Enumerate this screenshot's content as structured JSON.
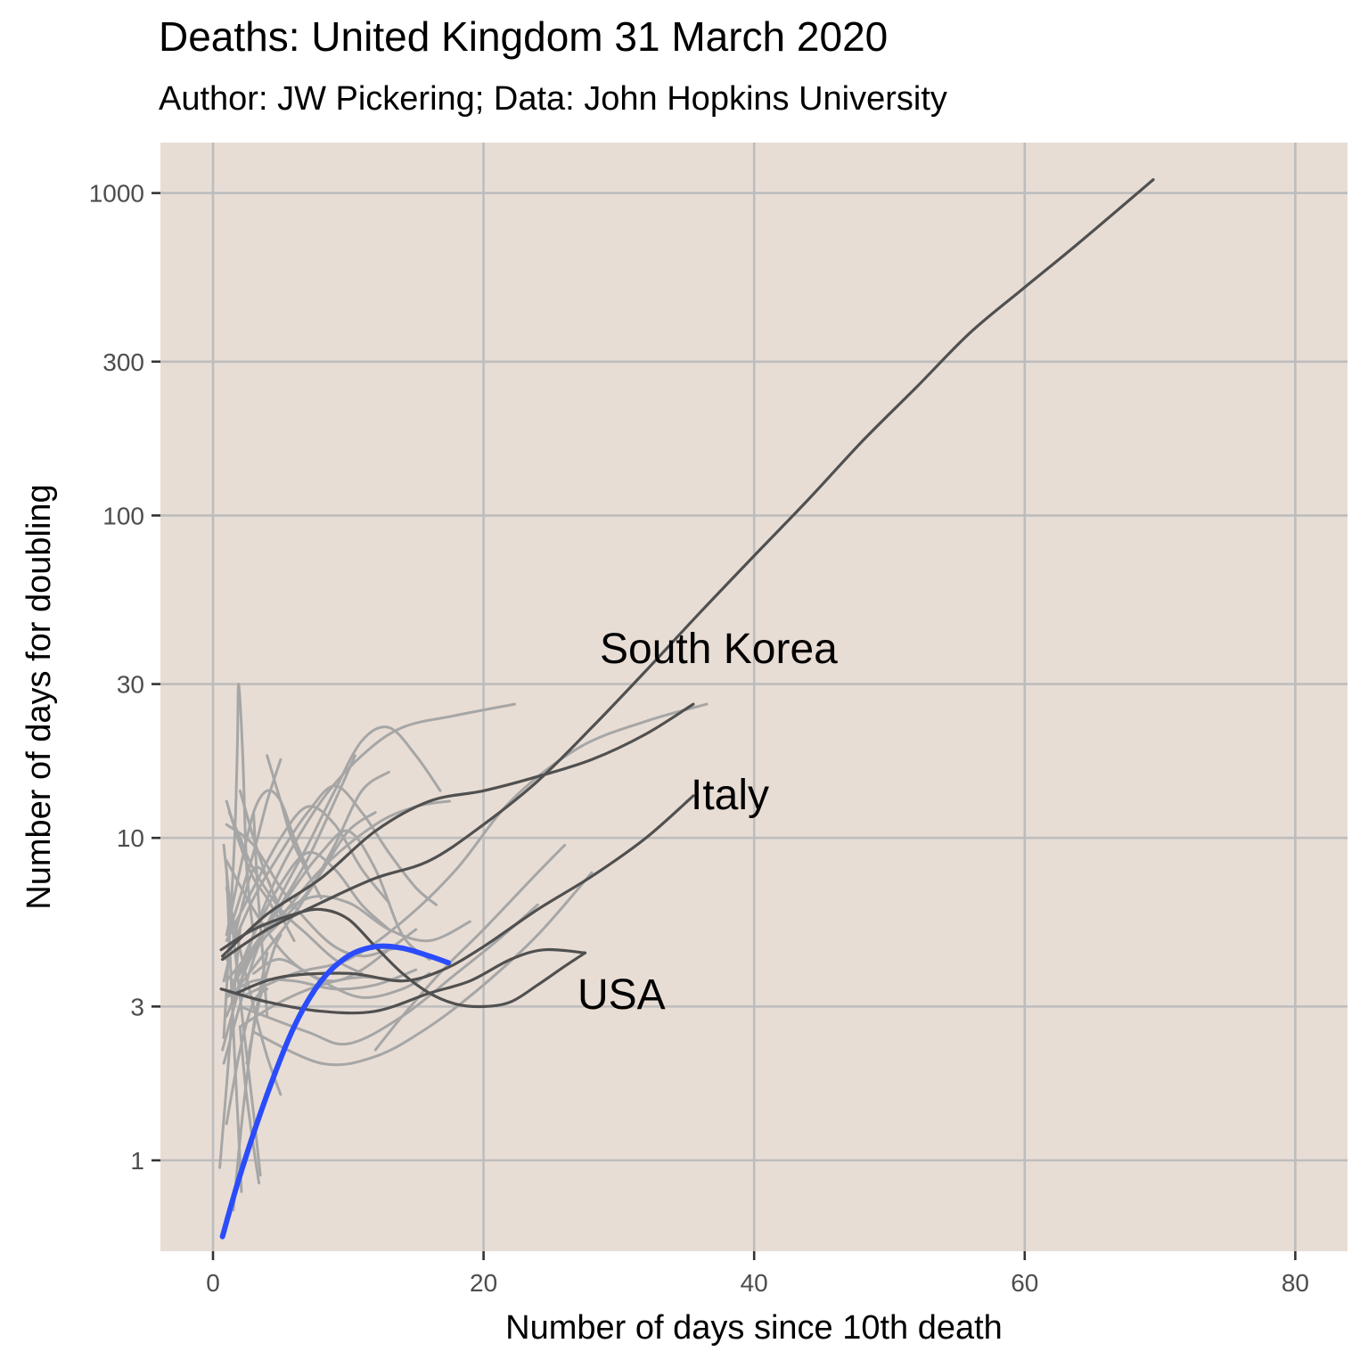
{
  "chart_data": {
    "type": "line",
    "title": "Deaths: United Kingdom 31 March 2020",
    "subtitle": "Author: JW Pickering; Data: John Hopkins University",
    "xlabel": "Number of days since 10th death",
    "ylabel": "Number of days for doubling",
    "x_scale": "linear",
    "y_scale": "log10",
    "xlim": [
      -4,
      84
    ],
    "ylim": [
      0.58,
      1250
    ],
    "x_ticks": [
      0,
      20,
      40,
      60,
      80
    ],
    "y_ticks": [
      1,
      3,
      10,
      30,
      100,
      300,
      1000
    ],
    "grid": true,
    "background": "#e8ddd5",
    "grid_color": "#bdbdbd",
    "colors": {
      "highlight": "#2a4cfa",
      "labeled": "#505050",
      "others": "#a6a6a6"
    },
    "highlight_series": {
      "country": "United Kingdom",
      "points": [
        [
          0.7,
          0.58
        ],
        [
          2,
          0.9
        ],
        [
          4,
          1.6
        ],
        [
          6,
          2.6
        ],
        [
          8,
          3.6
        ],
        [
          10,
          4.3
        ],
        [
          12,
          4.6
        ],
        [
          14,
          4.55
        ],
        [
          16,
          4.3
        ],
        [
          17.4,
          4.1
        ]
      ]
    },
    "labeled_series": [
      {
        "name": "South Korea",
        "points": [
          [
            0.7,
            4.2
          ],
          [
            4,
            5.2
          ],
          [
            8,
            6.3
          ],
          [
            12,
            7.5
          ],
          [
            16,
            8.5
          ],
          [
            20,
            11
          ],
          [
            24,
            15
          ],
          [
            28,
            22
          ],
          [
            32,
            33
          ],
          [
            36,
            50
          ],
          [
            40,
            75
          ],
          [
            44,
            112
          ],
          [
            48,
            170
          ],
          [
            52,
            250
          ],
          [
            56,
            370
          ],
          [
            60,
            510
          ],
          [
            64,
            700
          ],
          [
            69.5,
            1100
          ]
        ]
      },
      {
        "name": "Italy",
        "points": [
          [
            1.7,
            3.3
          ],
          [
            5,
            3.7
          ],
          [
            10,
            3.8
          ],
          [
            14,
            3.6
          ],
          [
            17,
            3.9
          ],
          [
            20,
            4.6
          ],
          [
            24,
            6
          ],
          [
            28,
            7.6
          ],
          [
            32,
            10
          ],
          [
            35.5,
            13.5
          ]
        ]
      },
      {
        "name": "USA",
        "points": [
          [
            0.6,
            3.4
          ],
          [
            4,
            3.1
          ],
          [
            8,
            2.9
          ],
          [
            12,
            2.9
          ],
          [
            16,
            3.3
          ],
          [
            19,
            3.6
          ],
          [
            22,
            4.2
          ],
          [
            24.5,
            4.5
          ],
          [
            27.5,
            4.4
          ]
        ]
      },
      {
        "name": "",
        "points": [
          [
            0.7,
            4.3
          ],
          [
            4,
            5.8
          ],
          [
            8,
            7.5
          ],
          [
            12,
            10.5
          ],
          [
            16,
            13
          ],
          [
            20,
            14
          ],
          [
            24,
            15.5
          ],
          [
            28,
            17.5
          ],
          [
            32,
            21
          ],
          [
            35.5,
            26
          ]
        ]
      },
      {
        "name": "",
        "points": [
          [
            0.6,
            4.5
          ],
          [
            3,
            5.2
          ],
          [
            6,
            5.8
          ],
          [
            8,
            6
          ],
          [
            10,
            5.6
          ],
          [
            12,
            4.6
          ],
          [
            14,
            3.8
          ],
          [
            16,
            3.3
          ],
          [
            18,
            3.05
          ],
          [
            20,
            3.0
          ],
          [
            22,
            3.1
          ],
          [
            24,
            3.5
          ],
          [
            26,
            4.0
          ],
          [
            27.5,
            4.4
          ]
        ]
      }
    ],
    "other_series": [
      [
        [
          0.7,
          2.2
        ],
        [
          2,
          3.5
        ],
        [
          3,
          5
        ],
        [
          5,
          8
        ],
        [
          8,
          13
        ],
        [
          11,
          18
        ],
        [
          14,
          22
        ],
        [
          18,
          24
        ],
        [
          22.3,
          26
        ]
      ],
      [
        [
          1.5,
          3.6
        ],
        [
          4,
          5
        ],
        [
          8,
          8
        ],
        [
          12,
          11
        ],
        [
          15,
          12.5
        ],
        [
          17.5,
          13
        ]
      ],
      [
        [
          2,
          3.2
        ],
        [
          6,
          3.8
        ],
        [
          10,
          4.2
        ],
        [
          14,
          5.5
        ],
        [
          18,
          8
        ],
        [
          22,
          13
        ],
        [
          27,
          19
        ],
        [
          32,
          23
        ],
        [
          36.5,
          26
        ]
      ],
      [
        [
          3,
          2.5
        ],
        [
          8,
          2.0
        ],
        [
          12,
          2.1
        ],
        [
          16,
          2.6
        ],
        [
          20,
          3.5
        ],
        [
          24,
          5
        ],
        [
          28,
          7.8
        ]
      ],
      [
        [
          2,
          3
        ],
        [
          7,
          2.5
        ],
        [
          10,
          2.3
        ],
        [
          14,
          2.8
        ],
        [
          18,
          3.8
        ],
        [
          21,
          4.8
        ],
        [
          24,
          6.2
        ]
      ],
      [
        [
          2,
          4
        ],
        [
          6,
          7
        ],
        [
          8,
          9
        ],
        [
          10,
          10.5
        ],
        [
          12,
          8
        ],
        [
          14,
          5
        ],
        [
          16,
          4.2
        ]
      ],
      [
        [
          1,
          2.8
        ],
        [
          3,
          4.4
        ],
        [
          5,
          5.5
        ],
        [
          7,
          6.8
        ],
        [
          9,
          9.5
        ],
        [
          11,
          14
        ],
        [
          13,
          16
        ]
      ],
      [
        [
          1,
          3.2
        ],
        [
          4,
          5.2
        ],
        [
          7,
          6.5
        ],
        [
          10,
          6.3
        ],
        [
          13,
          5.2
        ],
        [
          16,
          4.8
        ],
        [
          19,
          5.5
        ]
      ],
      [
        [
          0.8,
          2.0
        ],
        [
          3,
          4.2
        ],
        [
          5,
          6.6
        ],
        [
          7,
          9.5
        ],
        [
          9,
          14
        ],
        [
          11,
          20
        ],
        [
          13,
          22
        ],
        [
          15,
          18
        ],
        [
          16.8,
          14
        ]
      ],
      [
        [
          1,
          4.2
        ],
        [
          3,
          6.5
        ],
        [
          5,
          9
        ],
        [
          7,
          12
        ],
        [
          9,
          14.5
        ],
        [
          11,
          12
        ],
        [
          13,
          9
        ],
        [
          15,
          7
        ],
        [
          16.5,
          6.2
        ]
      ],
      [
        [
          1,
          8.5
        ],
        [
          3,
          6
        ],
        [
          5,
          4.5
        ],
        [
          7,
          3.8
        ],
        [
          9,
          3.6
        ],
        [
          11,
          3.9
        ],
        [
          13,
          4.5
        ],
        [
          15,
          5.2
        ]
      ],
      [
        [
          1,
          11
        ],
        [
          3,
          9.5
        ],
        [
          5,
          7
        ],
        [
          7,
          5.5
        ],
        [
          9,
          4.6
        ],
        [
          11,
          4.3
        ],
        [
          13,
          4.5
        ],
        [
          14,
          4.6
        ]
      ],
      [
        [
          1.5,
          5.6
        ],
        [
          3,
          9
        ],
        [
          4,
          13
        ],
        [
          5,
          17.5
        ]
      ],
      [
        [
          0.8,
          2.4
        ],
        [
          1.2,
          4.8
        ],
        [
          1.6,
          10
        ],
        [
          1.8,
          19
        ],
        [
          1.9,
          30
        ],
        [
          2.2,
          18
        ],
        [
          2.5,
          8
        ],
        [
          3,
          5
        ]
      ],
      [
        [
          1.2,
          12
        ],
        [
          2,
          10
        ],
        [
          3,
          8
        ],
        [
          5,
          6
        ],
        [
          7,
          5
        ],
        [
          9,
          4.2
        ],
        [
          11,
          3.8
        ]
      ],
      [
        [
          1,
          3.6
        ],
        [
          3,
          4.6
        ],
        [
          5,
          6.2
        ],
        [
          7,
          8.6
        ],
        [
          9,
          13
        ],
        [
          10.5,
          18
        ]
      ],
      [
        [
          2,
          3.5
        ],
        [
          4,
          4.5
        ],
        [
          6,
          5.8
        ],
        [
          8,
          7.8
        ],
        [
          10,
          10.5
        ],
        [
          12,
          12
        ]
      ],
      [
        [
          3,
          3.8
        ],
        [
          5,
          4.2
        ],
        [
          8,
          3.6
        ],
        [
          11,
          3.2
        ],
        [
          14,
          3.4
        ],
        [
          16,
          3.8
        ]
      ],
      [
        [
          1,
          5
        ],
        [
          2,
          8
        ],
        [
          3,
          12
        ],
        [
          4,
          14
        ],
        [
          5,
          13
        ],
        [
          6,
          10
        ],
        [
          7,
          8
        ]
      ],
      [
        [
          1,
          3.2
        ],
        [
          3,
          3.6
        ],
        [
          6,
          3.6
        ],
        [
          9,
          3.4
        ],
        [
          12,
          3.5
        ],
        [
          15,
          3.9
        ]
      ],
      [
        [
          2,
          2.6
        ],
        [
          5,
          3.1
        ],
        [
          8,
          3.5
        ],
        [
          11,
          3.7
        ],
        [
          14,
          3.6
        ]
      ],
      [
        [
          1,
          4.8
        ],
        [
          3,
          7
        ],
        [
          5,
          10
        ],
        [
          7,
          12.5
        ],
        [
          9,
          11
        ],
        [
          11,
          8
        ],
        [
          13,
          6.3
        ]
      ],
      [
        [
          1.5,
          3.5
        ],
        [
          3,
          5
        ],
        [
          5,
          7.2
        ],
        [
          7,
          9
        ],
        [
          9,
          8
        ],
        [
          11,
          6.2
        ],
        [
          13,
          5.2
        ]
      ],
      [
        [
          0.8,
          3.6
        ],
        [
          2,
          5.8
        ],
        [
          3,
          8
        ],
        [
          4,
          7.5
        ],
        [
          5,
          5.8
        ],
        [
          6,
          4.8
        ]
      ],
      [
        [
          1,
          13
        ],
        [
          2,
          9.5
        ],
        [
          3,
          7.5
        ],
        [
          4,
          6.5
        ],
        [
          5,
          5.5
        ]
      ],
      [
        [
          2,
          14
        ],
        [
          3,
          10
        ],
        [
          4,
          7.5
        ],
        [
          5,
          6
        ]
      ],
      [
        [
          4,
          18
        ],
        [
          5,
          13
        ],
        [
          6,
          9.5
        ],
        [
          8,
          6.5
        ]
      ],
      [
        [
          1,
          7
        ],
        [
          2,
          4.5
        ],
        [
          3,
          3
        ],
        [
          4,
          2.1
        ],
        [
          5,
          1.6
        ]
      ],
      [
        [
          0.8,
          9.5
        ],
        [
          1.5,
          5
        ],
        [
          2.2,
          2.7
        ],
        [
          3,
          1.4
        ],
        [
          3.5,
          0.9
        ]
      ],
      [
        [
          2,
          2.6
        ],
        [
          2.4,
          1.7
        ],
        [
          3,
          1.1
        ],
        [
          3.4,
          0.85
        ]
      ],
      [
        [
          1,
          8
        ],
        [
          1.3,
          4
        ],
        [
          1.6,
          2.1
        ],
        [
          1.9,
          1.2
        ],
        [
          2.1,
          0.8
        ]
      ],
      [
        [
          3,
          12
        ],
        [
          3.3,
          7
        ],
        [
          3.7,
          4.2
        ],
        [
          4,
          2.8
        ]
      ],
      [
        [
          0.5,
          0.95
        ],
        [
          1,
          1.7
        ],
        [
          1.5,
          3.1
        ],
        [
          2,
          5.2
        ]
      ],
      [
        [
          1.5,
          0.7
        ],
        [
          2.2,
          1.4
        ],
        [
          3,
          2.6
        ],
        [
          4,
          4.4
        ]
      ],
      [
        [
          2.5,
          2
        ],
        [
          3.5,
          3.2
        ],
        [
          4.5,
          4.5
        ],
        [
          5,
          5
        ]
      ],
      [
        [
          1,
          1.3
        ],
        [
          2,
          2.2
        ],
        [
          3,
          3.1
        ],
        [
          4,
          3.4
        ]
      ],
      [
        [
          12,
          2.2
        ],
        [
          14,
          2.8
        ],
        [
          17,
          3.9
        ],
        [
          20,
          5.2
        ],
        [
          24,
          7.8
        ],
        [
          26,
          9.5
        ]
      ]
    ]
  }
}
